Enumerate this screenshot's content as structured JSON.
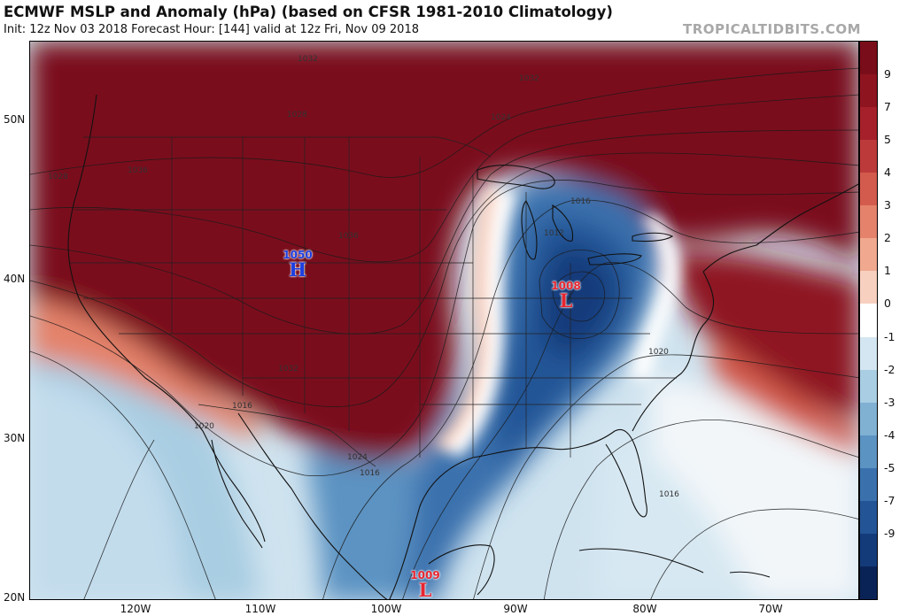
{
  "header": {
    "title": "ECMWF MSLP and Anomaly (hPa) (based on CFSR 1981-2010 Climatology)",
    "subtitle": "Init: 12z Nov 03 2018   Forecast Hour: [144]   valid at 12z Fri, Nov 09 2018",
    "brand": "TROPICALTIDBITS.COM"
  },
  "axes": {
    "latitudes": [
      "50N",
      "40N",
      "30N",
      "20N"
    ],
    "longitudes": [
      "120W",
      "110W",
      "100W",
      "90W",
      "80W",
      "70W"
    ]
  },
  "colorbar": {
    "ticks": [
      "9",
      "7",
      "5",
      "4",
      "3",
      "2",
      "1",
      "0",
      "-1",
      "-2",
      "-3",
      "-4",
      "-5",
      "-7",
      "-9"
    ],
    "colors": [
      "#7a0d1a",
      "#8e1420",
      "#a5202a",
      "#bd3a3a",
      "#d35b4d",
      "#e4826b",
      "#f0a88f",
      "#f8d0bf",
      "#ffffff",
      "#d3e6f1",
      "#a9cde2",
      "#80b1d3",
      "#5b93c2",
      "#3a71ad",
      "#235596",
      "#133b7a",
      "#0a2357"
    ]
  },
  "pressure_centers": [
    {
      "id": "high-colorado",
      "type": "H",
      "value": "1050",
      "color": "#1d3fe0"
    },
    {
      "id": "low-ohio-valley",
      "type": "L",
      "value": "1008",
      "color": "#e8252e"
    },
    {
      "id": "low-gulf-mexico",
      "type": "L",
      "value": "1009",
      "color": "#e8252e"
    }
  ],
  "isobar_labels": [
    "1032",
    "1028",
    "1036",
    "1028",
    "1036",
    "1032",
    "1024",
    "1016",
    "1012",
    "1016",
    "1020",
    "1016",
    "1020",
    "1024",
    "1016",
    "1032"
  ]
}
